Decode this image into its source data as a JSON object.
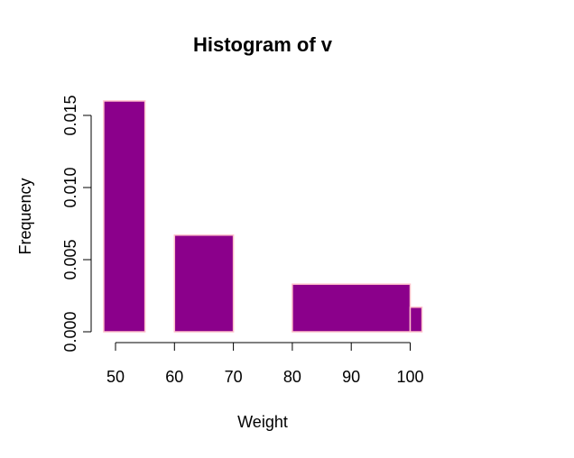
{
  "chart_data": {
    "type": "histogram",
    "title": "Histogram of v",
    "xlabel": "Weight",
    "ylabel": "Frequency",
    "xlim": [
      50,
      102
    ],
    "ylim": [
      0,
      0.016
    ],
    "x_ticks": [
      50,
      60,
      70,
      80,
      90,
      100
    ],
    "x_tick_labels": [
      "50",
      "60",
      "70",
      "80",
      "90",
      "100"
    ],
    "y_ticks": [
      0,
      0.005,
      0.01,
      0.015
    ],
    "y_tick_labels": [
      "0.000",
      "0.005",
      "0.010",
      "0.015"
    ],
    "bins": [
      {
        "start": 48,
        "end": 55,
        "value": 0.016
      },
      {
        "start": 55,
        "end": 60,
        "value": 0
      },
      {
        "start": 60,
        "end": 70,
        "value": 0.0067
      },
      {
        "start": 70,
        "end": 80,
        "value": 0
      },
      {
        "start": 80,
        "end": 100,
        "value": 0.0033
      },
      {
        "start": 100,
        "end": 102,
        "value": 0.0017
      }
    ],
    "bar_color": "#8b008b",
    "bar_border_color": "#ffc0cb",
    "grid": false,
    "legend": "none"
  }
}
